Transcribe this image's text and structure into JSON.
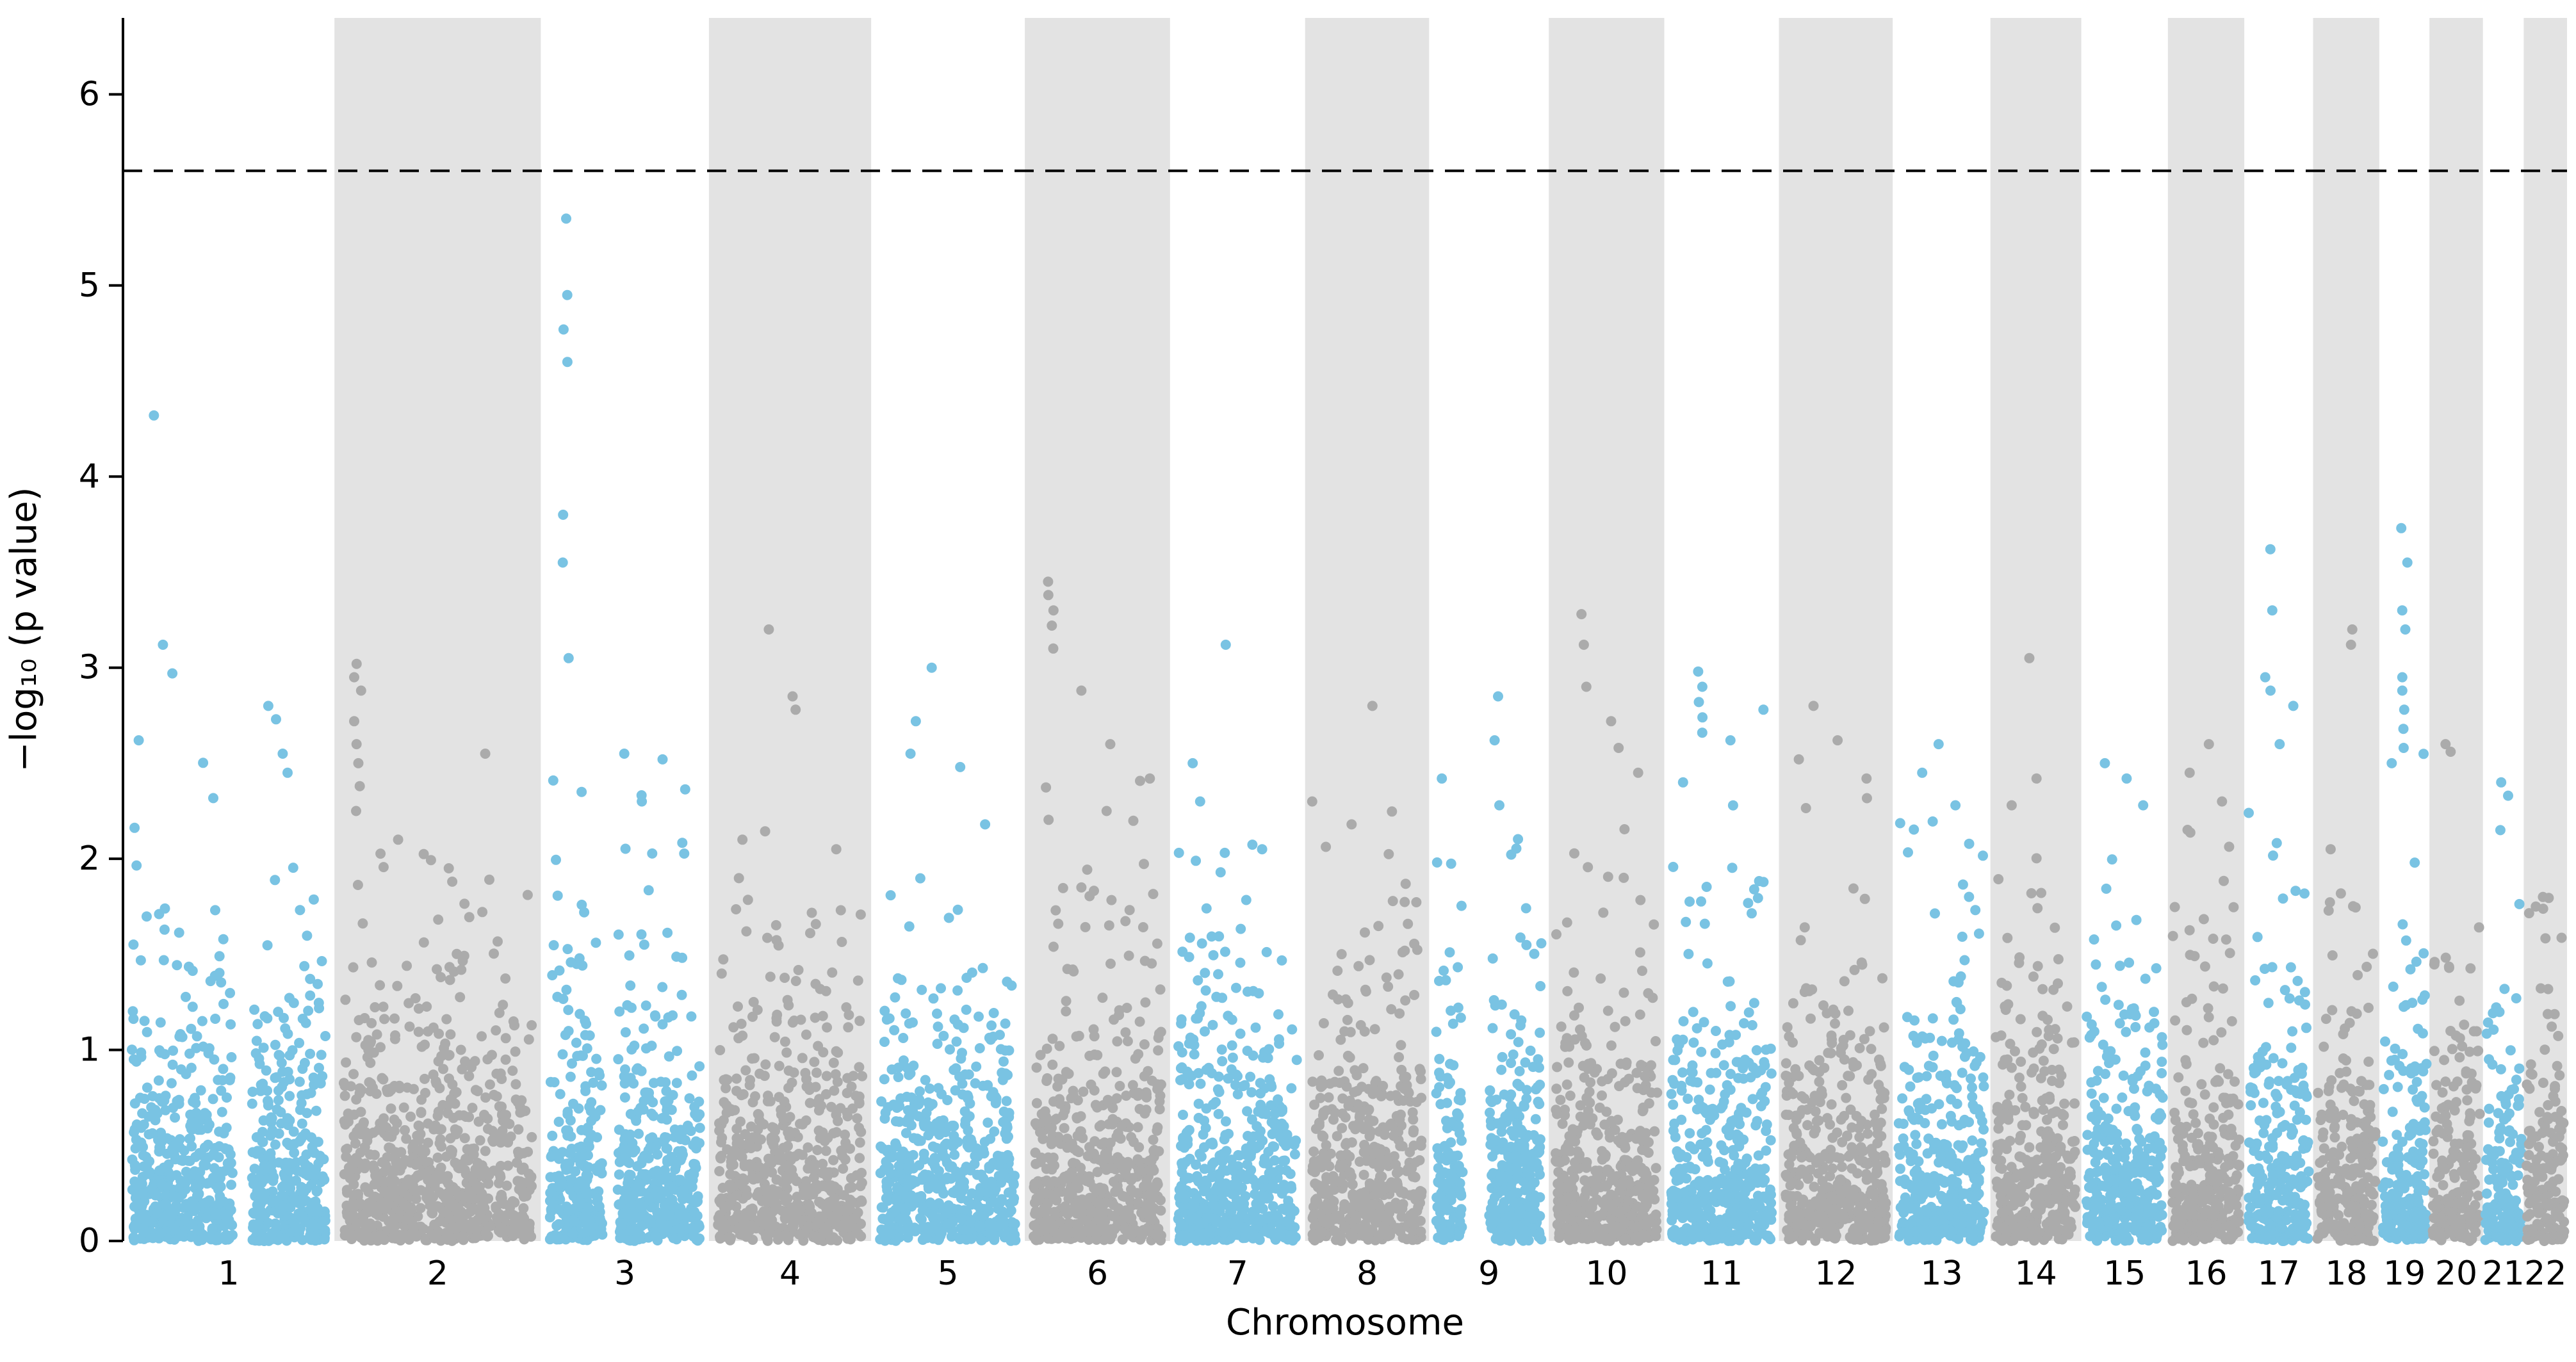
{
  "figure": {
    "background": "#ffffff"
  },
  "chart_data": {
    "type": "scatter",
    "variant": "manhattan",
    "title": "",
    "xlabel": "Chromosome",
    "ylabel": "−log₁₀ (p value)",
    "ylim": [
      0,
      6.4
    ],
    "yticks": [
      0,
      1,
      2,
      3,
      4,
      5,
      6
    ],
    "grid": false,
    "legend": "none",
    "threshold": {
      "y": 5.6,
      "style": "dashed",
      "color": "#000000"
    },
    "colors": {
      "odd_chromosome_points": "#79C3E3",
      "even_chromosome_points": "#ABABAB",
      "even_chromosome_band": "#E3E3E3"
    },
    "seed": 20240613,
    "point_radius": 8,
    "points_per_mb": 3.2,
    "chromosomes": [
      {
        "label": "1",
        "size_mb": 249,
        "base_max": 2.6,
        "gaps": [
          [
            0.52,
            0.62
          ]
        ],
        "outliers": [
          [
            0.15,
            4.32
          ],
          [
            0.2,
            3.12
          ],
          [
            0.23,
            2.97
          ],
          [
            0.08,
            2.62
          ],
          [
            0.7,
            2.8
          ],
          [
            0.72,
            2.73
          ],
          [
            0.75,
            2.55
          ],
          [
            0.78,
            2.45
          ]
        ]
      },
      {
        "label": "2",
        "size_mb": 243,
        "base_max": 2.1,
        "gaps": [],
        "outliers": [
          [
            0.1,
            3.02
          ],
          [
            0.11,
            2.95
          ],
          [
            0.12,
            2.88
          ],
          [
            0.1,
            2.72
          ],
          [
            0.12,
            2.6
          ],
          [
            0.11,
            2.5
          ],
          [
            0.13,
            2.38
          ],
          [
            0.12,
            2.25
          ],
          [
            0.3,
            2.1
          ],
          [
            0.72,
            2.55
          ],
          [
            0.55,
            1.95
          ]
        ]
      },
      {
        "label": "3",
        "size_mb": 198,
        "base_max": 2.5,
        "gaps": [
          [
            0.35,
            0.45
          ]
        ],
        "outliers": [
          [
            0.14,
            5.35
          ],
          [
            0.14,
            4.95
          ],
          [
            0.15,
            4.77
          ],
          [
            0.14,
            4.6
          ],
          [
            0.15,
            3.8
          ],
          [
            0.14,
            3.55
          ],
          [
            0.15,
            3.05
          ],
          [
            0.5,
            2.55
          ],
          [
            0.72,
            2.52
          ],
          [
            0.25,
            2.35
          ],
          [
            0.62,
            2.3
          ]
        ]
      },
      {
        "label": "4",
        "size_mb": 191,
        "base_max": 2.15,
        "gaps": [],
        "outliers": [
          [
            0.35,
            3.2
          ],
          [
            0.52,
            2.85
          ],
          [
            0.55,
            2.78
          ],
          [
            0.2,
            2.1
          ],
          [
            0.8,
            2.05
          ]
        ]
      },
      {
        "label": "5",
        "size_mb": 181,
        "base_max": 2.3,
        "gaps": [],
        "outliers": [
          [
            0.38,
            3.0
          ],
          [
            0.3,
            2.72
          ],
          [
            0.25,
            2.55
          ],
          [
            0.6,
            2.48
          ],
          [
            0.75,
            2.18
          ]
        ]
      },
      {
        "label": "6",
        "size_mb": 171,
        "base_max": 2.5,
        "gaps": [],
        "outliers": [
          [
            0.18,
            3.45
          ],
          [
            0.18,
            3.38
          ],
          [
            0.19,
            3.3
          ],
          [
            0.18,
            3.22
          ],
          [
            0.19,
            3.1
          ],
          [
            0.4,
            2.88
          ],
          [
            0.6,
            2.6
          ],
          [
            0.85,
            2.42
          ]
        ]
      },
      {
        "label": "7",
        "size_mb": 159,
        "base_max": 2.1,
        "gaps": [],
        "outliers": [
          [
            0.42,
            3.12
          ],
          [
            0.15,
            2.5
          ],
          [
            0.2,
            2.3
          ],
          [
            0.7,
            2.05
          ]
        ]
      },
      {
        "label": "8",
        "size_mb": 146,
        "base_max": 2.25,
        "gaps": [],
        "outliers": [
          [
            0.55,
            2.8
          ],
          [
            0.08,
            2.3
          ],
          [
            0.35,
            2.18
          ]
        ]
      },
      {
        "label": "9",
        "size_mb": 141,
        "base_max": 2.2,
        "gaps": [
          [
            0.25,
            0.5
          ]
        ],
        "outliers": [
          [
            0.55,
            2.85
          ],
          [
            0.56,
            2.62
          ],
          [
            0.12,
            2.42
          ],
          [
            0.6,
            2.28
          ]
        ]
      },
      {
        "label": "10",
        "size_mb": 136,
        "base_max": 2.4,
        "gaps": [],
        "outliers": [
          [
            0.28,
            3.28
          ],
          [
            0.29,
            3.12
          ],
          [
            0.31,
            2.9
          ],
          [
            0.55,
            2.72
          ],
          [
            0.6,
            2.58
          ],
          [
            0.75,
            2.45
          ]
        ]
      },
      {
        "label": "11",
        "size_mb": 135,
        "base_max": 2.6,
        "gaps": [],
        "outliers": [
          [
            0.32,
            2.98
          ],
          [
            0.33,
            2.9
          ],
          [
            0.32,
            2.82
          ],
          [
            0.34,
            2.74
          ],
          [
            0.33,
            2.66
          ],
          [
            0.55,
            2.62
          ],
          [
            0.85,
            2.78
          ],
          [
            0.15,
            2.4
          ]
        ]
      },
      {
        "label": "12",
        "size_mb": 134,
        "base_max": 2.4,
        "gaps": [],
        "outliers": [
          [
            0.28,
            2.8
          ],
          [
            0.5,
            2.62
          ],
          [
            0.18,
            2.52
          ],
          [
            0.78,
            2.42
          ]
        ]
      },
      {
        "label": "13",
        "size_mb": 115,
        "base_max": 2.2,
        "gaps": [],
        "outliers": [
          [
            0.5,
            2.6
          ],
          [
            0.32,
            2.45
          ],
          [
            0.65,
            2.28
          ]
        ]
      },
      {
        "label": "14",
        "size_mb": 107,
        "base_max": 2.2,
        "gaps": [],
        "outliers": [
          [
            0.45,
            3.05
          ],
          [
            0.5,
            2.42
          ],
          [
            0.25,
            2.28
          ]
        ]
      },
      {
        "label": "15",
        "size_mb": 102,
        "base_max": 2.2,
        "gaps": [],
        "outliers": [
          [
            0.3,
            2.5
          ],
          [
            0.55,
            2.42
          ],
          [
            0.7,
            2.28
          ]
        ]
      },
      {
        "label": "16",
        "size_mb": 90,
        "base_max": 2.2,
        "gaps": [],
        "outliers": [
          [
            0.5,
            2.6
          ],
          [
            0.3,
            2.45
          ],
          [
            0.7,
            2.3
          ]
        ]
      },
      {
        "label": "17",
        "size_mb": 81,
        "base_max": 2.5,
        "gaps": [],
        "outliers": [
          [
            0.35,
            3.62
          ],
          [
            0.38,
            3.3
          ],
          [
            0.3,
            2.95
          ],
          [
            0.4,
            2.88
          ],
          [
            0.7,
            2.8
          ],
          [
            0.55,
            2.6
          ]
        ]
      },
      {
        "label": "18",
        "size_mb": 78,
        "base_max": 2.1,
        "gaps": [],
        "outliers": [
          [
            0.55,
            3.2
          ],
          [
            0.57,
            3.12
          ],
          [
            0.3,
            2.05
          ]
        ]
      },
      {
        "label": "19",
        "size_mb": 59,
        "base_max": 2.6,
        "gaps": [],
        "outliers": [
          [
            0.5,
            3.73
          ],
          [
            0.5,
            3.55
          ],
          [
            0.52,
            3.3
          ],
          [
            0.5,
            3.2
          ],
          [
            0.51,
            2.95
          ],
          [
            0.52,
            2.88
          ],
          [
            0.5,
            2.78
          ],
          [
            0.51,
            2.68
          ],
          [
            0.2,
            2.5
          ],
          [
            0.52,
            2.58
          ]
        ]
      },
      {
        "label": "20",
        "size_mb": 63,
        "base_max": 2.2,
        "gaps": [],
        "outliers": [
          [
            0.3,
            2.6
          ],
          [
            0.35,
            2.56
          ]
        ]
      },
      {
        "label": "21",
        "size_mb": 48,
        "base_max": 2.0,
        "gaps": [],
        "outliers": [
          [
            0.5,
            2.4
          ],
          [
            0.55,
            2.33
          ],
          [
            0.45,
            2.15
          ]
        ]
      },
      {
        "label": "22",
        "size_mb": 51,
        "base_max": 1.8,
        "gaps": [],
        "outliers": [
          [
            0.5,
            1.8
          ],
          [
            0.3,
            1.75
          ]
        ]
      }
    ]
  }
}
